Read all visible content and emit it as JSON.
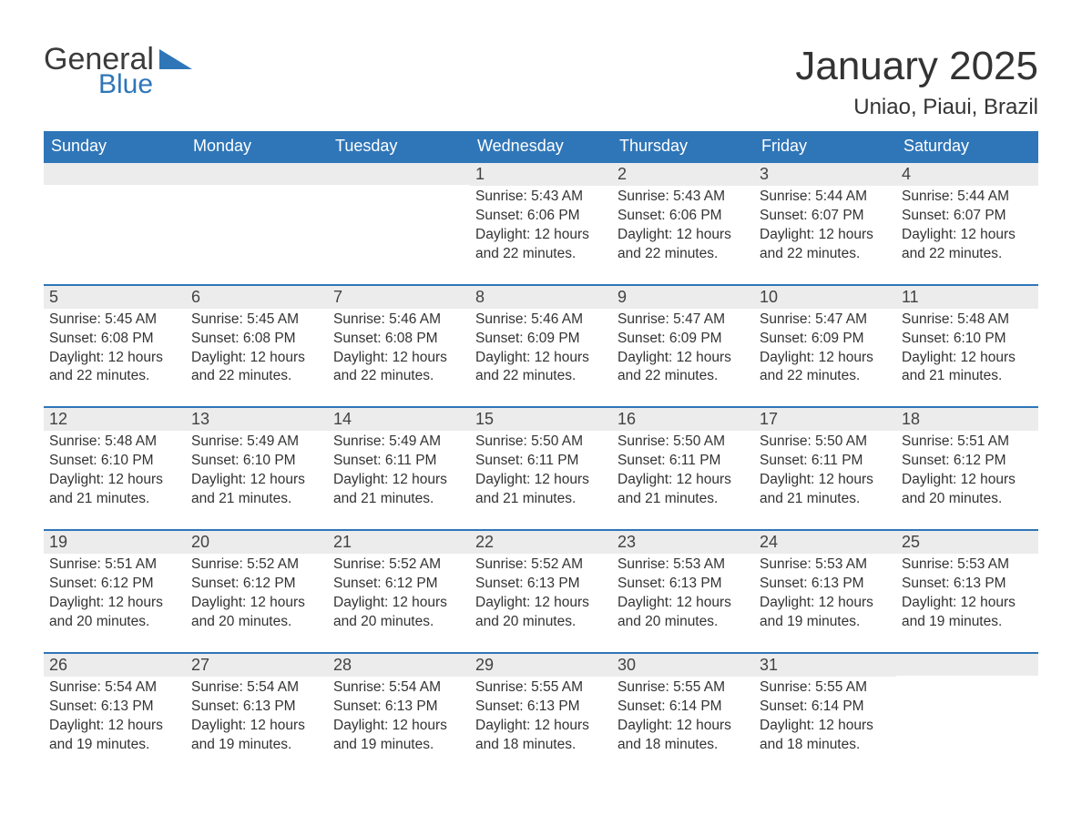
{
  "brand": {
    "word1": "General",
    "word2": "Blue",
    "accent_color": "#2f76b8",
    "text_color": "#3b3b3b"
  },
  "header": {
    "title": "January 2025",
    "location": "Uniao, Piaui, Brazil"
  },
  "calendar": {
    "type": "table",
    "columns": [
      "Sunday",
      "Monday",
      "Tuesday",
      "Wednesday",
      "Thursday",
      "Friday",
      "Saturday"
    ],
    "header_bg": "#2f76b8",
    "header_fg": "#ffffff",
    "row_divider_color": "#2f76b8",
    "daynum_bg": "#ececec",
    "body_fontsize": 15.5,
    "header_fontsize": 18,
    "title_fontsize": 44,
    "location_fontsize": 24,
    "weeks": [
      [
        null,
        null,
        null,
        {
          "n": "1",
          "sr": "Sunrise: 5:43 AM",
          "ss": "Sunset: 6:06 PM",
          "dl": "Daylight: 12 hours and 22 minutes."
        },
        {
          "n": "2",
          "sr": "Sunrise: 5:43 AM",
          "ss": "Sunset: 6:06 PM",
          "dl": "Daylight: 12 hours and 22 minutes."
        },
        {
          "n": "3",
          "sr": "Sunrise: 5:44 AM",
          "ss": "Sunset: 6:07 PM",
          "dl": "Daylight: 12 hours and 22 minutes."
        },
        {
          "n": "4",
          "sr": "Sunrise: 5:44 AM",
          "ss": "Sunset: 6:07 PM",
          "dl": "Daylight: 12 hours and 22 minutes."
        }
      ],
      [
        {
          "n": "5",
          "sr": "Sunrise: 5:45 AM",
          "ss": "Sunset: 6:08 PM",
          "dl": "Daylight: 12 hours and 22 minutes."
        },
        {
          "n": "6",
          "sr": "Sunrise: 5:45 AM",
          "ss": "Sunset: 6:08 PM",
          "dl": "Daylight: 12 hours and 22 minutes."
        },
        {
          "n": "7",
          "sr": "Sunrise: 5:46 AM",
          "ss": "Sunset: 6:08 PM",
          "dl": "Daylight: 12 hours and 22 minutes."
        },
        {
          "n": "8",
          "sr": "Sunrise: 5:46 AM",
          "ss": "Sunset: 6:09 PM",
          "dl": "Daylight: 12 hours and 22 minutes."
        },
        {
          "n": "9",
          "sr": "Sunrise: 5:47 AM",
          "ss": "Sunset: 6:09 PM",
          "dl": "Daylight: 12 hours and 22 minutes."
        },
        {
          "n": "10",
          "sr": "Sunrise: 5:47 AM",
          "ss": "Sunset: 6:09 PM",
          "dl": "Daylight: 12 hours and 22 minutes."
        },
        {
          "n": "11",
          "sr": "Sunrise: 5:48 AM",
          "ss": "Sunset: 6:10 PM",
          "dl": "Daylight: 12 hours and 21 minutes."
        }
      ],
      [
        {
          "n": "12",
          "sr": "Sunrise: 5:48 AM",
          "ss": "Sunset: 6:10 PM",
          "dl": "Daylight: 12 hours and 21 minutes."
        },
        {
          "n": "13",
          "sr": "Sunrise: 5:49 AM",
          "ss": "Sunset: 6:10 PM",
          "dl": "Daylight: 12 hours and 21 minutes."
        },
        {
          "n": "14",
          "sr": "Sunrise: 5:49 AM",
          "ss": "Sunset: 6:11 PM",
          "dl": "Daylight: 12 hours and 21 minutes."
        },
        {
          "n": "15",
          "sr": "Sunrise: 5:50 AM",
          "ss": "Sunset: 6:11 PM",
          "dl": "Daylight: 12 hours and 21 minutes."
        },
        {
          "n": "16",
          "sr": "Sunrise: 5:50 AM",
          "ss": "Sunset: 6:11 PM",
          "dl": "Daylight: 12 hours and 21 minutes."
        },
        {
          "n": "17",
          "sr": "Sunrise: 5:50 AM",
          "ss": "Sunset: 6:11 PM",
          "dl": "Daylight: 12 hours and 21 minutes."
        },
        {
          "n": "18",
          "sr": "Sunrise: 5:51 AM",
          "ss": "Sunset: 6:12 PM",
          "dl": "Daylight: 12 hours and 20 minutes."
        }
      ],
      [
        {
          "n": "19",
          "sr": "Sunrise: 5:51 AM",
          "ss": "Sunset: 6:12 PM",
          "dl": "Daylight: 12 hours and 20 minutes."
        },
        {
          "n": "20",
          "sr": "Sunrise: 5:52 AM",
          "ss": "Sunset: 6:12 PM",
          "dl": "Daylight: 12 hours and 20 minutes."
        },
        {
          "n": "21",
          "sr": "Sunrise: 5:52 AM",
          "ss": "Sunset: 6:12 PM",
          "dl": "Daylight: 12 hours and 20 minutes."
        },
        {
          "n": "22",
          "sr": "Sunrise: 5:52 AM",
          "ss": "Sunset: 6:13 PM",
          "dl": "Daylight: 12 hours and 20 minutes."
        },
        {
          "n": "23",
          "sr": "Sunrise: 5:53 AM",
          "ss": "Sunset: 6:13 PM",
          "dl": "Daylight: 12 hours and 20 minutes."
        },
        {
          "n": "24",
          "sr": "Sunrise: 5:53 AM",
          "ss": "Sunset: 6:13 PM",
          "dl": "Daylight: 12 hours and 19 minutes."
        },
        {
          "n": "25",
          "sr": "Sunrise: 5:53 AM",
          "ss": "Sunset: 6:13 PM",
          "dl": "Daylight: 12 hours and 19 minutes."
        }
      ],
      [
        {
          "n": "26",
          "sr": "Sunrise: 5:54 AM",
          "ss": "Sunset: 6:13 PM",
          "dl": "Daylight: 12 hours and 19 minutes."
        },
        {
          "n": "27",
          "sr": "Sunrise: 5:54 AM",
          "ss": "Sunset: 6:13 PM",
          "dl": "Daylight: 12 hours and 19 minutes."
        },
        {
          "n": "28",
          "sr": "Sunrise: 5:54 AM",
          "ss": "Sunset: 6:13 PM",
          "dl": "Daylight: 12 hours and 19 minutes."
        },
        {
          "n": "29",
          "sr": "Sunrise: 5:55 AM",
          "ss": "Sunset: 6:13 PM",
          "dl": "Daylight: 12 hours and 18 minutes."
        },
        {
          "n": "30",
          "sr": "Sunrise: 5:55 AM",
          "ss": "Sunset: 6:14 PM",
          "dl": "Daylight: 12 hours and 18 minutes."
        },
        {
          "n": "31",
          "sr": "Sunrise: 5:55 AM",
          "ss": "Sunset: 6:14 PM",
          "dl": "Daylight: 12 hours and 18 minutes."
        },
        null
      ]
    ]
  }
}
